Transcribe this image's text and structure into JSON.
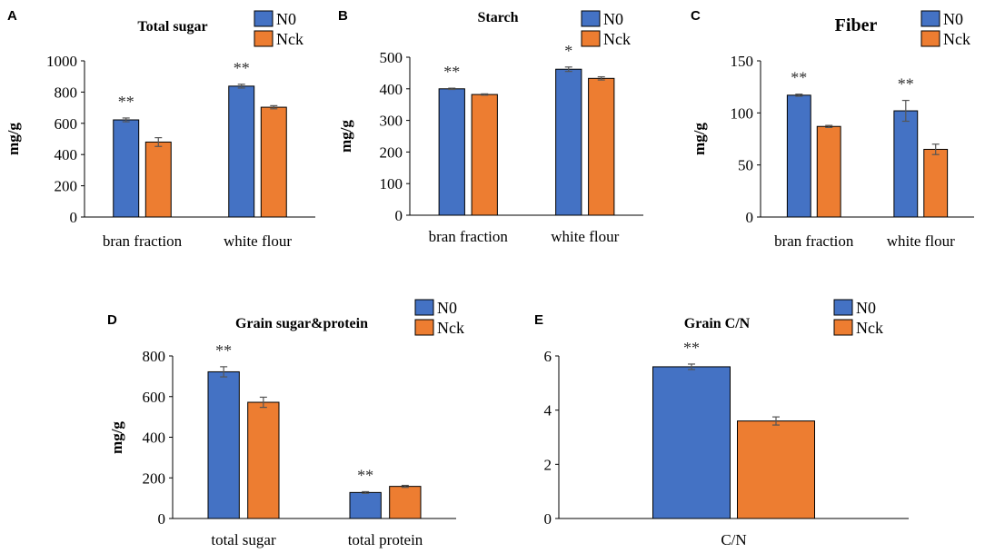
{
  "colors": {
    "N0": "#4472C4",
    "Nck": "#ED7D31",
    "bar_edge": "#000000",
    "axis": "#000000",
    "errorbar": "#555555"
  },
  "chart_data": [
    {
      "panel": "A",
      "type": "bar",
      "title": "Total sugar",
      "ylabel": "mg/g",
      "xlabel": "",
      "categories": [
        "bran fraction",
        "white flour"
      ],
      "ylim": [
        0,
        1000
      ],
      "yticks": [
        0,
        200,
        400,
        600,
        800,
        1000
      ],
      "series": [
        {
          "name": "N0",
          "values": [
            622,
            838
          ],
          "errors": [
            12,
            12
          ]
        },
        {
          "name": "Nck",
          "values": [
            480,
            703
          ],
          "errors": [
            28,
            10
          ]
        }
      ],
      "annotations": [
        {
          "category": 0,
          "series": 0,
          "text": "**"
        },
        {
          "category": 1,
          "series": 0,
          "text": "**"
        }
      ]
    },
    {
      "panel": "B",
      "type": "bar",
      "title": "Starch",
      "ylabel": "mg/g",
      "xlabel": "",
      "categories": [
        "bran fraction",
        "white flour"
      ],
      "ylim": [
        0,
        500
      ],
      "yticks": [
        0,
        100,
        200,
        300,
        400,
        500
      ],
      "series": [
        {
          "name": "N0",
          "values": [
            400,
            462
          ],
          "errors": [
            2,
            7
          ]
        },
        {
          "name": "Nck",
          "values": [
            382,
            433
          ],
          "errors": [
            2,
            5
          ]
        }
      ],
      "annotations": [
        {
          "category": 0,
          "series": 0,
          "text": "**"
        },
        {
          "category": 1,
          "series": 0,
          "text": "*"
        }
      ]
    },
    {
      "panel": "C",
      "type": "bar",
      "title": "Fiber",
      "ylabel": "mg/g",
      "xlabel": "",
      "categories": [
        "bran fraction",
        "white flour"
      ],
      "ylim": [
        0,
        150
      ],
      "yticks": [
        0,
        50,
        100,
        150
      ],
      "series": [
        {
          "name": "N0",
          "values": [
            117,
            102
          ],
          "errors": [
            1,
            10
          ]
        },
        {
          "name": "Nck",
          "values": [
            87,
            65
          ],
          "errors": [
            1,
            5
          ]
        }
      ],
      "annotations": [
        {
          "category": 0,
          "series": 0,
          "text": "**"
        },
        {
          "category": 1,
          "series": 0,
          "text": "**"
        }
      ]
    },
    {
      "panel": "D",
      "type": "bar",
      "title": "Grain sugar&protein",
      "ylabel": "mg/g",
      "xlabel": "",
      "categories": [
        "total sugar",
        "total protein"
      ],
      "ylim": [
        0,
        800
      ],
      "yticks": [
        0,
        200,
        400,
        600,
        800
      ],
      "series": [
        {
          "name": "N0",
          "values": [
            722,
            128
          ],
          "errors": [
            25,
            4
          ]
        },
        {
          "name": "Nck",
          "values": [
            572,
            158
          ],
          "errors": [
            25,
            5
          ]
        }
      ],
      "annotations": [
        {
          "category": 0,
          "series": 0,
          "text": "**"
        },
        {
          "category": 1,
          "series": 0,
          "text": "**"
        }
      ]
    },
    {
      "panel": "E",
      "type": "bar",
      "title": "Grain C/N",
      "ylabel": "",
      "xlabel": "",
      "categories": [
        "C/N"
      ],
      "ylim": [
        0,
        6
      ],
      "yticks": [
        0,
        2,
        4,
        6
      ],
      "series": [
        {
          "name": "N0",
          "values": [
            5.6
          ],
          "errors": [
            0.1
          ]
        },
        {
          "name": "Nck",
          "values": [
            3.6
          ],
          "errors": [
            0.15
          ]
        }
      ],
      "annotations": [
        {
          "category": 0,
          "series": 0,
          "text": "**"
        }
      ]
    }
  ]
}
